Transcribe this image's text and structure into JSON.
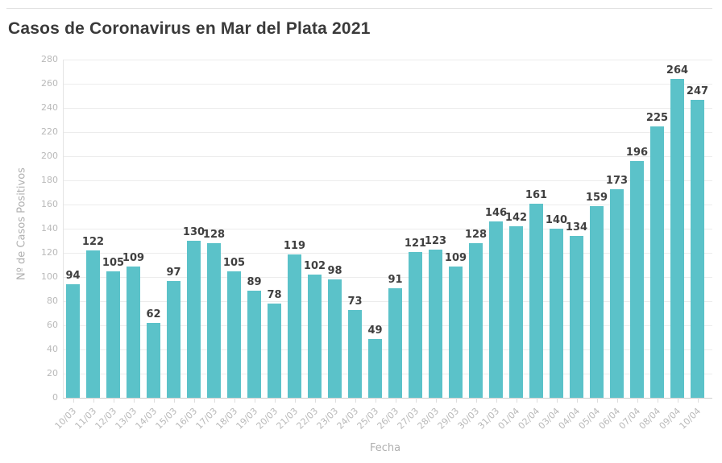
{
  "chart_data": {
    "type": "bar",
    "title": "Casos de Coronavirus en Mar del Plata 2021",
    "xlabel": "Fecha",
    "ylabel": "Nº de Casos Positivos",
    "ylim": [
      0,
      280
    ],
    "yticks": [
      0,
      20,
      40,
      60,
      80,
      100,
      120,
      140,
      160,
      180,
      200,
      220,
      240,
      260,
      280
    ],
    "grid": true,
    "legend": "none",
    "bar_color": "#5bc2c9",
    "categories": [
      "10/03",
      "11/03",
      "12/03",
      "13/03",
      "14/03",
      "15/03",
      "16/03",
      "17/03",
      "18/03",
      "19/03",
      "20/03",
      "21/03",
      "22/03",
      "23/03",
      "24/03",
      "25/03",
      "26/03",
      "27/03",
      "28/03",
      "29/03",
      "30/03",
      "31/03",
      "01/04",
      "02/04",
      "03/04",
      "04/04",
      "05/04",
      "06/04",
      "07/04",
      "08/04",
      "09/04",
      "10/04"
    ],
    "values": [
      94,
      122,
      105,
      109,
      62,
      97,
      130,
      128,
      105,
      89,
      78,
      119,
      102,
      98,
      73,
      49,
      91,
      121,
      123,
      109,
      128,
      146,
      142,
      161,
      140,
      134,
      159,
      173,
      196,
      225,
      264,
      247
    ]
  },
  "colors": {
    "bar": "#5bc2c9",
    "title_text": "#3a3a3a",
    "value_label_text": "#3f3f3f",
    "axis_label_text": "#b9b9b9",
    "axis_title_text": "#b0b0b0",
    "gridline": "#ececec",
    "baseline": "#cfcfcf",
    "top_rule": "#e2e2e2"
  }
}
